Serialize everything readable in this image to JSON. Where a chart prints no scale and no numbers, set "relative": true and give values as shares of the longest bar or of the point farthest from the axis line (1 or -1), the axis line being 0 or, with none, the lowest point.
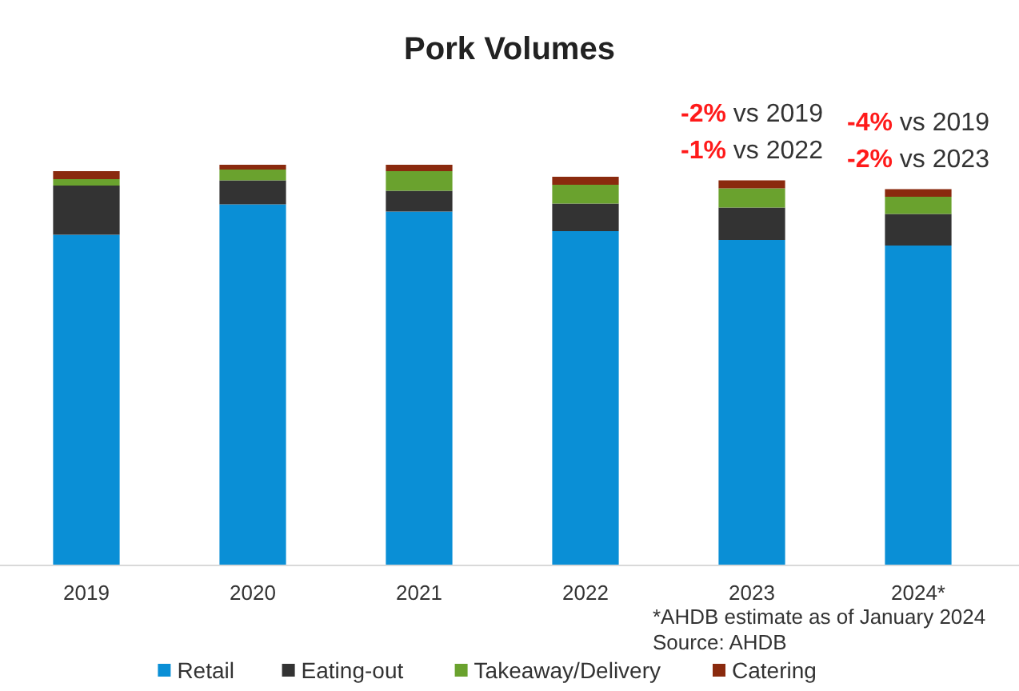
{
  "chart_data": {
    "type": "bar",
    "title": "Pork Volumes",
    "stacked": true,
    "relative": true,
    "legend": "bottom",
    "categories": [
      "2019",
      "2020",
      "2021",
      "2022",
      "2023",
      "2024*"
    ],
    "series": [
      {
        "name": "Retail",
        "color": "#0a8fd6",
        "values": [
          0.825,
          0.901,
          0.883,
          0.834,
          0.812,
          0.798
        ]
      },
      {
        "name": "Eating-out",
        "color": "#333333",
        "values": [
          0.123,
          0.06,
          0.052,
          0.069,
          0.081,
          0.079
        ]
      },
      {
        "name": "Takeaway/Delivery",
        "color": "#6aa22e",
        "values": [
          0.016,
          0.027,
          0.049,
          0.047,
          0.048,
          0.043
        ]
      },
      {
        "name": "Catering",
        "color": "#8a2a0e",
        "values": [
          0.02,
          0.012,
          0.016,
          0.02,
          0.02,
          0.019
        ]
      }
    ],
    "annotations": [
      {
        "text": "-2% vs 2019",
        "x": "2023",
        "y": 0.961
      },
      {
        "text": "-1% vs 2022",
        "x": "2023",
        "y": 0.961
      },
      {
        "text": "-4% vs 2019",
        "x": "2024*",
        "y": 0.939
      },
      {
        "text": "-2% vs 2023",
        "x": "2024*",
        "y": 0.939
      },
      "*AHDB estimate as of January 2024",
      "Source: AHDB"
    ]
  }
}
